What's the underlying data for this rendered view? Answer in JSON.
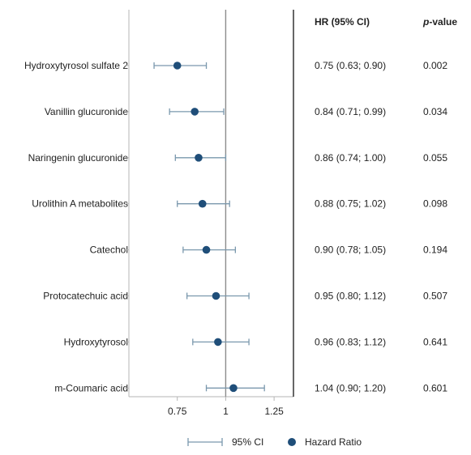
{
  "chart_data": {
    "type": "forest",
    "headers": {
      "hr": "HR (95% CI)",
      "pvalue_italic": "p",
      "pvalue_rest": "-value"
    },
    "rows": [
      {
        "label": "Hydroxytyrosol sulfate 2",
        "hr": 0.75,
        "lo": 0.63,
        "hi": 0.9,
        "hr_text": "0.75 (0.63; 0.90)",
        "p_text": "0.002"
      },
      {
        "label": "Vanillin glucuronide",
        "hr": 0.84,
        "lo": 0.71,
        "hi": 0.99,
        "hr_text": "0.84 (0.71; 0.99)",
        "p_text": "0.034"
      },
      {
        "label": "Naringenin glucuronide",
        "hr": 0.86,
        "lo": 0.74,
        "hi": 1.0,
        "hr_text": "0.86 (0.74; 1.00)",
        "p_text": "0.055"
      },
      {
        "label": "Urolithin A metabolites",
        "hr": 0.88,
        "lo": 0.75,
        "hi": 1.02,
        "hr_text": "0.88 (0.75; 1.02)",
        "p_text": "0.098"
      },
      {
        "label": "Catechol",
        "hr": 0.9,
        "lo": 0.78,
        "hi": 1.05,
        "hr_text": "0.90 (0.78; 1.05)",
        "p_text": "0.194"
      },
      {
        "label": "Protocatechuic acid",
        "hr": 0.95,
        "lo": 0.8,
        "hi": 1.12,
        "hr_text": "0.95 (0.80; 1.12)",
        "p_text": "0.507"
      },
      {
        "label": "Hydroxytyrosol",
        "hr": 0.96,
        "lo": 0.83,
        "hi": 1.12,
        "hr_text": "0.96 (0.83; 1.12)",
        "p_text": "0.641"
      },
      {
        "label": "m-Coumaric acid",
        "hr": 1.04,
        "lo": 0.9,
        "hi": 1.2,
        "hr_text": "1.04 (0.90; 1.20)",
        "p_text": "0.601"
      }
    ],
    "x_ticks": [
      0.75,
      1,
      1.25
    ],
    "x_tick_labels": [
      "0.75",
      "1",
      "1.25"
    ],
    "xlim": [
      0.5,
      1.35
    ],
    "reference_line": 1,
    "legend": {
      "ci_label": "95% CI",
      "point_label": "Hazard Ratio",
      "position": "bottom"
    },
    "colors": {
      "point": "#1f4e79",
      "ci": "#7a98ad",
      "ref_line": "#8c8c8c",
      "frame": "#b5b5b5",
      "divider": "#000000"
    }
  }
}
